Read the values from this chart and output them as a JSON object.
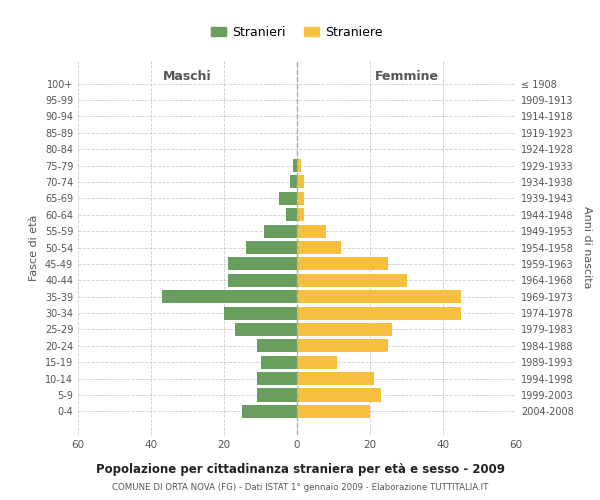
{
  "age_groups": [
    "0-4",
    "5-9",
    "10-14",
    "15-19",
    "20-24",
    "25-29",
    "30-34",
    "35-39",
    "40-44",
    "45-49",
    "50-54",
    "55-59",
    "60-64",
    "65-69",
    "70-74",
    "75-79",
    "80-84",
    "85-89",
    "90-94",
    "95-99",
    "100+"
  ],
  "birth_years": [
    "2004-2008",
    "1999-2003",
    "1994-1998",
    "1989-1993",
    "1984-1988",
    "1979-1983",
    "1974-1978",
    "1969-1973",
    "1964-1968",
    "1959-1963",
    "1954-1958",
    "1949-1953",
    "1944-1948",
    "1939-1943",
    "1934-1938",
    "1929-1933",
    "1924-1928",
    "1919-1923",
    "1914-1918",
    "1909-1913",
    "≤ 1908"
  ],
  "males": [
    15,
    11,
    11,
    10,
    11,
    17,
    20,
    37,
    19,
    19,
    14,
    9,
    3,
    5,
    2,
    1,
    0,
    0,
    0,
    0,
    0
  ],
  "females": [
    20,
    23,
    21,
    11,
    25,
    26,
    45,
    45,
    30,
    25,
    12,
    8,
    2,
    2,
    2,
    1,
    0,
    0,
    0,
    0,
    0
  ],
  "male_color": "#6a9e5f",
  "female_color": "#f5c040",
  "title": "Popolazione per cittadinanza straniera per età e sesso - 2009",
  "subtitle": "COMUNE DI ORTA NOVA (FG) - Dati ISTAT 1° gennaio 2009 - Elaborazione TUTTITALIA.IT",
  "xlabel_left": "Maschi",
  "xlabel_right": "Femmine",
  "ylabel_left": "Fasce di età",
  "ylabel_right": "Anni di nascita",
  "legend_male": "Stranieri",
  "legend_female": "Straniere",
  "xlim": 60,
  "background_color": "#ffffff",
  "grid_color": "#cccccc",
  "bar_height": 0.8
}
